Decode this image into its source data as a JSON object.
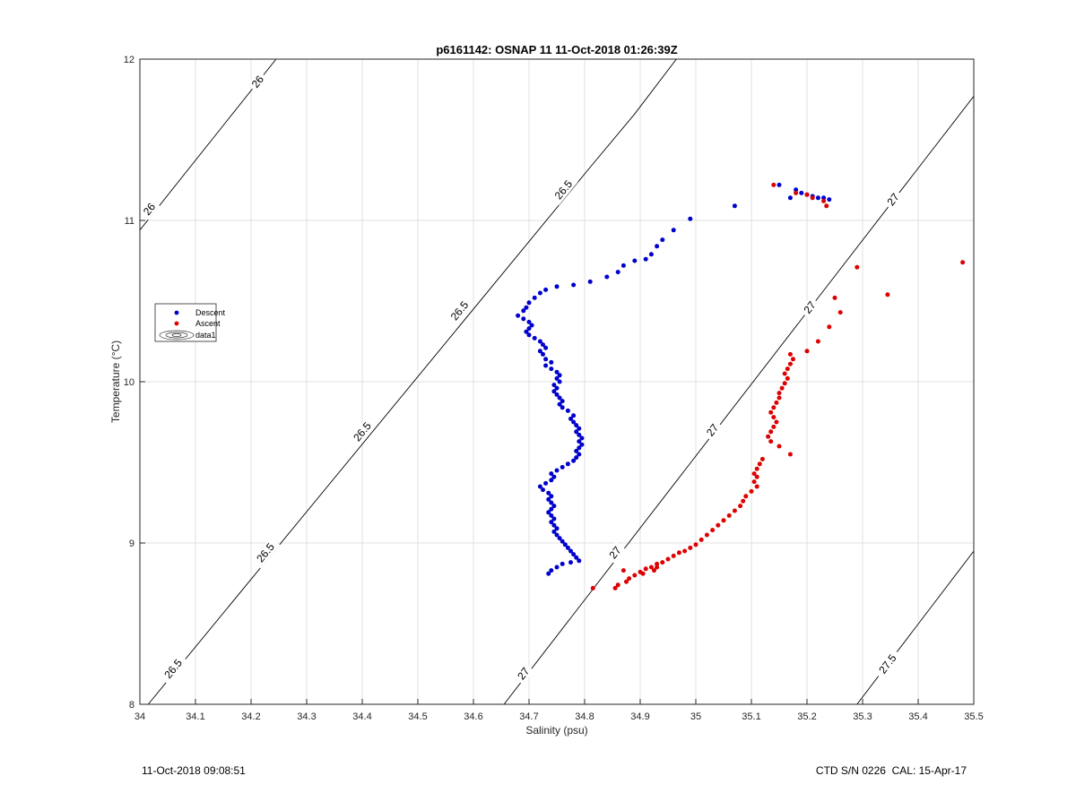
{
  "footer": {
    "timestamp": "11-Oct-2018 09:08:51",
    "instrument": "CTD S/N 0226  CAL: 15-Apr-17"
  },
  "chart_data": {
    "type": "scatter",
    "title": "p6161142: OSNAP 11 11-Oct-2018 01:26:39Z",
    "xlabel": "Salinity (psu)",
    "ylabel": "Temperature (°C)",
    "xlim": [
      34,
      35.5
    ],
    "ylim": [
      8,
      12
    ],
    "xticks": [
      "34",
      "34.1",
      "34.2",
      "34.3",
      "34.4",
      "34.5",
      "34.6",
      "34.7",
      "34.8",
      "34.9",
      "35",
      "35.1",
      "35.2",
      "35.3",
      "35.4",
      "35.5"
    ],
    "yticks": [
      "8",
      "9",
      "10",
      "11",
      "12"
    ],
    "grid": true,
    "legend_position": "left",
    "legend": [
      "Descent",
      "Ascent",
      "data1"
    ],
    "colors": {
      "descent": "#0000cc",
      "ascent": "#dd0000",
      "contour": "#000000",
      "grid": "#e0e0e0"
    },
    "contours": [
      {
        "level": "26",
        "points": [
          [
            34.0,
            10.94
          ],
          [
            34.245,
            12.0
          ]
        ],
        "labels": [
          [
            34.017,
            11.07
          ],
          [
            34.212,
            11.86
          ]
        ]
      },
      {
        "level": "26.5",
        "points": [
          [
            34.015,
            8.0
          ],
          [
            34.81,
            11.33
          ],
          [
            34.89,
            11.66
          ],
          [
            34.965,
            12.0
          ]
        ],
        "labels": [
          [
            34.06,
            8.22
          ],
          [
            34.226,
            8.94
          ],
          [
            34.4,
            9.69
          ],
          [
            34.575,
            10.44
          ],
          [
            34.762,
            11.19
          ]
        ]
      },
      {
        "level": "27",
        "points": [
          [
            34.655,
            8.0
          ],
          [
            35.5,
            11.77
          ]
        ],
        "labels": [
          [
            34.69,
            8.19
          ],
          [
            34.855,
            8.94
          ],
          [
            35.03,
            9.7
          ],
          [
            35.205,
            10.46
          ],
          [
            35.355,
            11.13
          ]
        ]
      },
      {
        "level": "27.5",
        "points": [
          [
            35.29,
            8.0
          ],
          [
            35.5,
            8.95
          ]
        ],
        "labels": [
          [
            35.345,
            8.25
          ]
        ]
      }
    ],
    "series": [
      {
        "name": "Descent",
        "color": "#0000cc",
        "points": [
          [
            34.99,
            11.01
          ],
          [
            34.96,
            10.94
          ],
          [
            34.94,
            10.88
          ],
          [
            34.93,
            10.84
          ],
          [
            34.92,
            10.79
          ],
          [
            34.91,
            10.76
          ],
          [
            34.89,
            10.75
          ],
          [
            34.87,
            10.72
          ],
          [
            34.86,
            10.68
          ],
          [
            34.84,
            10.65
          ],
          [
            34.81,
            10.62
          ],
          [
            34.78,
            10.6
          ],
          [
            34.75,
            10.59
          ],
          [
            34.73,
            10.57
          ],
          [
            34.72,
            10.55
          ],
          [
            34.71,
            10.52
          ],
          [
            34.7,
            10.49
          ],
          [
            34.695,
            10.46
          ],
          [
            34.69,
            10.44
          ],
          [
            34.68,
            10.41
          ],
          [
            34.69,
            10.39
          ],
          [
            34.7,
            10.37
          ],
          [
            34.705,
            10.35
          ],
          [
            34.7,
            10.33
          ],
          [
            34.695,
            10.31
          ],
          [
            34.7,
            10.29
          ],
          [
            34.71,
            10.27
          ],
          [
            34.72,
            10.25
          ],
          [
            34.725,
            10.23
          ],
          [
            34.73,
            10.21
          ],
          [
            34.72,
            10.19
          ],
          [
            34.725,
            10.17
          ],
          [
            34.73,
            10.14
          ],
          [
            34.74,
            10.12
          ],
          [
            34.73,
            10.1
          ],
          [
            34.74,
            10.08
          ],
          [
            34.75,
            10.06
          ],
          [
            34.755,
            10.04
          ],
          [
            34.75,
            10.02
          ],
          [
            34.755,
            10.0
          ],
          [
            34.745,
            9.98
          ],
          [
            34.75,
            9.96
          ],
          [
            34.745,
            9.94
          ],
          [
            34.75,
            9.92
          ],
          [
            34.755,
            9.9
          ],
          [
            34.76,
            9.88
          ],
          [
            34.755,
            9.86
          ],
          [
            34.76,
            9.84
          ],
          [
            34.77,
            9.82
          ],
          [
            34.78,
            9.79
          ],
          [
            34.775,
            9.77
          ],
          [
            34.78,
            9.75
          ],
          [
            34.785,
            9.73
          ],
          [
            34.79,
            9.71
          ],
          [
            34.785,
            9.69
          ],
          [
            34.79,
            9.67
          ],
          [
            34.795,
            9.65
          ],
          [
            34.79,
            9.63
          ],
          [
            34.795,
            9.61
          ],
          [
            34.79,
            9.59
          ],
          [
            34.785,
            9.57
          ],
          [
            34.79,
            9.55
          ],
          [
            34.785,
            9.53
          ],
          [
            34.78,
            9.51
          ],
          [
            34.77,
            9.49
          ],
          [
            34.76,
            9.47
          ],
          [
            34.75,
            9.45
          ],
          [
            34.74,
            9.43
          ],
          [
            34.745,
            9.41
          ],
          [
            34.74,
            9.39
          ],
          [
            34.73,
            9.37
          ],
          [
            34.72,
            9.35
          ],
          [
            34.725,
            9.33
          ],
          [
            34.735,
            9.31
          ],
          [
            34.74,
            9.29
          ],
          [
            34.735,
            9.27
          ],
          [
            34.74,
            9.25
          ],
          [
            34.745,
            9.23
          ],
          [
            34.74,
            9.21
          ],
          [
            34.735,
            9.19
          ],
          [
            34.74,
            9.17
          ],
          [
            34.745,
            9.15
          ],
          [
            34.74,
            9.13
          ],
          [
            34.745,
            9.11
          ],
          [
            34.75,
            9.09
          ],
          [
            34.745,
            9.07
          ],
          [
            34.75,
            9.05
          ],
          [
            34.755,
            9.03
          ],
          [
            34.76,
            9.01
          ],
          [
            34.765,
            8.99
          ],
          [
            34.77,
            8.97
          ],
          [
            34.775,
            8.95
          ],
          [
            34.78,
            8.93
          ],
          [
            34.785,
            8.91
          ],
          [
            34.79,
            8.89
          ],
          [
            34.775,
            8.88
          ],
          [
            34.76,
            8.87
          ],
          [
            34.75,
            8.85
          ],
          [
            34.74,
            8.83
          ],
          [
            34.735,
            8.81
          ],
          [
            35.07,
            11.09
          ],
          [
            35.15,
            11.22
          ],
          [
            35.17,
            11.14
          ],
          [
            35.18,
            11.19
          ],
          [
            35.19,
            11.17
          ],
          [
            35.2,
            11.16
          ],
          [
            35.21,
            11.15
          ],
          [
            35.22,
            11.14
          ],
          [
            35.23,
            11.14
          ],
          [
            35.24,
            11.13
          ]
        ]
      },
      {
        "name": "Ascent",
        "color": "#dd0000",
        "points": [
          [
            35.14,
            11.22
          ],
          [
            35.18,
            11.17
          ],
          [
            35.2,
            11.16
          ],
          [
            35.21,
            11.14
          ],
          [
            35.23,
            11.12
          ],
          [
            35.235,
            11.09
          ],
          [
            35.48,
            10.74
          ],
          [
            35.29,
            10.71
          ],
          [
            35.345,
            10.54
          ],
          [
            35.25,
            10.52
          ],
          [
            35.26,
            10.43
          ],
          [
            35.24,
            10.34
          ],
          [
            35.22,
            10.25
          ],
          [
            35.2,
            10.19
          ],
          [
            35.17,
            10.17
          ],
          [
            35.175,
            10.14
          ],
          [
            35.17,
            10.11
          ],
          [
            35.165,
            10.08
          ],
          [
            35.16,
            10.05
          ],
          [
            35.165,
            10.02
          ],
          [
            35.16,
            9.99
          ],
          [
            35.155,
            9.96
          ],
          [
            35.15,
            9.93
          ],
          [
            35.15,
            9.9
          ],
          [
            35.145,
            9.87
          ],
          [
            35.14,
            9.84
          ],
          [
            35.135,
            9.81
          ],
          [
            35.14,
            9.78
          ],
          [
            35.145,
            9.75
          ],
          [
            35.14,
            9.72
          ],
          [
            35.135,
            9.69
          ],
          [
            35.13,
            9.66
          ],
          [
            35.135,
            9.63
          ],
          [
            35.15,
            9.6
          ],
          [
            35.17,
            9.55
          ],
          [
            35.12,
            9.52
          ],
          [
            35.115,
            9.49
          ],
          [
            35.11,
            9.46
          ],
          [
            35.105,
            9.43
          ],
          [
            35.11,
            9.41
          ],
          [
            35.105,
            9.38
          ],
          [
            35.11,
            9.35
          ],
          [
            35.1,
            9.32
          ],
          [
            35.09,
            9.29
          ],
          [
            35.085,
            9.26
          ],
          [
            35.08,
            9.23
          ],
          [
            35.07,
            9.2
          ],
          [
            35.06,
            9.17
          ],
          [
            35.05,
            9.14
          ],
          [
            35.04,
            9.11
          ],
          [
            35.03,
            9.08
          ],
          [
            35.02,
            9.05
          ],
          [
            35.01,
            9.02
          ],
          [
            35.0,
            8.99
          ],
          [
            34.99,
            8.97
          ],
          [
            34.98,
            8.95
          ],
          [
            34.97,
            8.94
          ],
          [
            34.96,
            8.92
          ],
          [
            34.95,
            8.9
          ],
          [
            34.94,
            8.88
          ],
          [
            34.93,
            8.87
          ],
          [
            34.92,
            8.85
          ],
          [
            34.91,
            8.84
          ],
          [
            34.9,
            8.82
          ],
          [
            34.89,
            8.8
          ],
          [
            34.88,
            8.78
          ],
          [
            34.87,
            8.83
          ],
          [
            34.875,
            8.76
          ],
          [
            34.86,
            8.74
          ],
          [
            34.855,
            8.72
          ],
          [
            34.815,
            8.72
          ],
          [
            34.905,
            8.81
          ],
          [
            34.93,
            8.85
          ],
          [
            34.925,
            8.83
          ]
        ]
      }
    ]
  }
}
